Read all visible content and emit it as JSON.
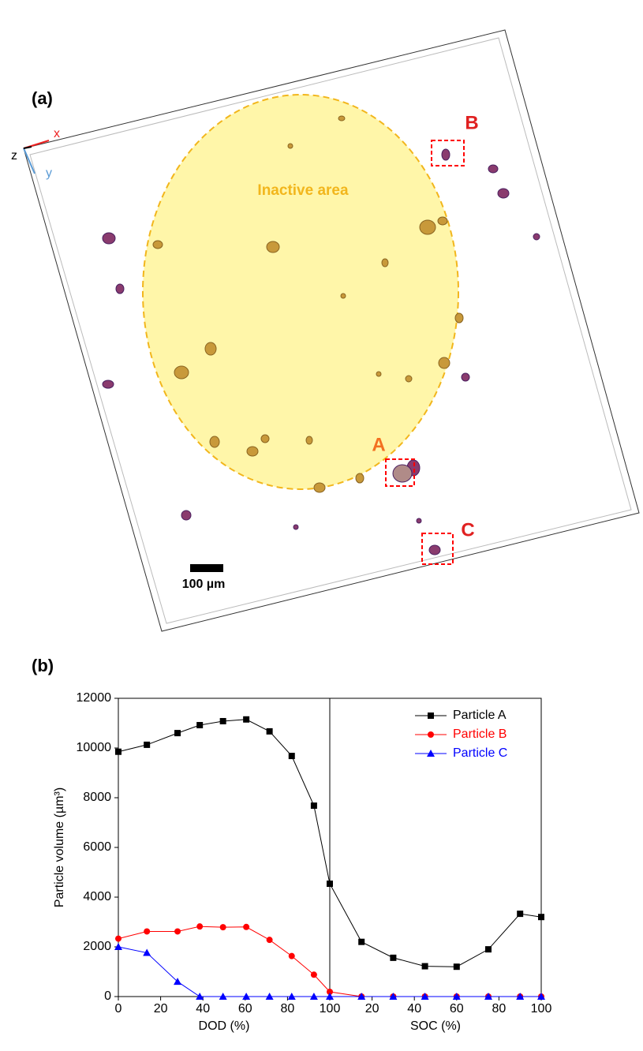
{
  "figure": {
    "panel_a_label": "(a)",
    "panel_b_label": "(b)",
    "region_label": "Inactive area",
    "particle_labels": [
      "A",
      "B",
      "C"
    ],
    "scale_bar": "100 µm",
    "axes": [
      "x",
      "y",
      "z"
    ]
  },
  "chart_data": {
    "type": "line",
    "xlabels": [
      "DOD (%)",
      "SOC (%)"
    ],
    "ylabel": "Particle volume (µm³)",
    "x": [
      0,
      13.5,
      28,
      38.5,
      49.5,
      60.5,
      71.5,
      82,
      92.5,
      100,
      115,
      130,
      145,
      160,
      175,
      190,
      200
    ],
    "series": [
      {
        "name": "Particle A",
        "color": "#000000",
        "marker": "square",
        "values": [
          9850,
          10130,
          10600,
          10920,
          11080,
          11150,
          10670,
          9680,
          7680,
          4540,
          2200,
          1560,
          1220,
          1200,
          1900,
          3330,
          3200
        ]
      },
      {
        "name": "Particle B",
        "color": "#ff0000",
        "marker": "circle",
        "values": [
          2330,
          2620,
          2620,
          2820,
          2790,
          2800,
          2280,
          1630,
          880,
          190,
          0,
          0,
          0,
          0,
          0,
          0,
          0
        ]
      },
      {
        "name": "Particle C",
        "color": "#0000ff",
        "marker": "triangle",
        "values": [
          2000,
          1760,
          600,
          0,
          0,
          0,
          0,
          0,
          0,
          0,
          0,
          0,
          0,
          0,
          0,
          0,
          0
        ]
      }
    ],
    "xlim": [
      0,
      200
    ],
    "xticks": [
      0,
      20,
      40,
      60,
      80,
      100,
      {
        "value": 120,
        "label": "20"
      },
      {
        "value": 140,
        "label": "40"
      },
      {
        "value": 160,
        "label": "60"
      },
      {
        "value": 180,
        "label": "80"
      },
      {
        "value": 200,
        "label": "100"
      }
    ],
    "divider": 100,
    "ylim": [
      0,
      12000
    ],
    "yticks": [
      0,
      2000,
      4000,
      6000,
      8000,
      10000,
      12000
    ],
    "legend": "upper right"
  }
}
